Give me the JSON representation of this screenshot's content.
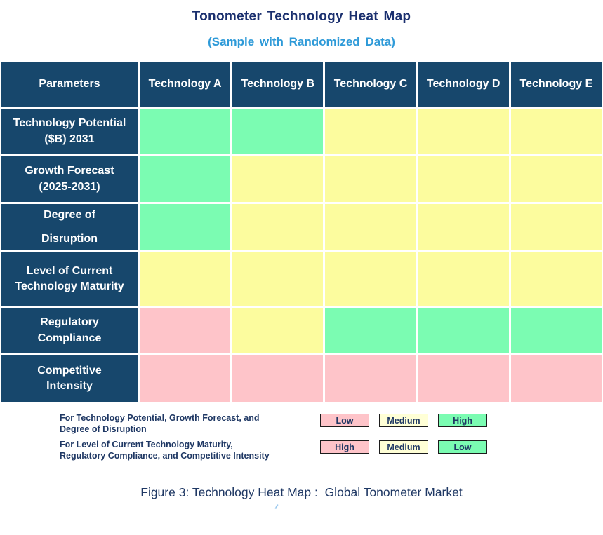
{
  "title": "Tonometer Technology Heat Map",
  "subtitle": "(Sample with Randomized Data)",
  "caption": "Figure 3: Technology Heat Map :  Global Tonometer Market",
  "table": {
    "header": [
      "Parameters",
      "Technology A",
      "Technology B",
      "Technology C",
      "Technology D",
      "Technology E"
    ],
    "rows": [
      {
        "label": "Technology Potential ($B) 2031",
        "label_lines": [
          "Technology Potential",
          "($B) 2031"
        ],
        "cells": [
          "green",
          "green",
          "yellow",
          "yellow",
          "yellow"
        ]
      },
      {
        "label": "Growth Forecast (2025-2031)",
        "label_lines": [
          "Growth Forecast",
          "(2025-2031)"
        ],
        "cells": [
          "green",
          "yellow",
          "yellow",
          "yellow",
          "yellow"
        ]
      },
      {
        "label": "Degree of Disruption",
        "label_lines": [
          "Degree of",
          "Disruption"
        ],
        "cells": [
          "green",
          "yellow",
          "yellow",
          "yellow",
          "yellow"
        ]
      },
      {
        "label": "Level of Current Technology Maturity",
        "label_lines": [
          "Level of Current",
          "Technology Maturity"
        ],
        "cells": [
          "yellow",
          "yellow",
          "yellow",
          "yellow",
          "yellow"
        ]
      },
      {
        "label": "Regulatory Compliance",
        "label_lines": [
          "Regulatory",
          "Compliance"
        ],
        "cells": [
          "pink",
          "yellow",
          "green",
          "green",
          "green"
        ]
      },
      {
        "label": "Competitive Intensity",
        "label_lines": [
          "Competitive",
          "Intensity"
        ],
        "cells": [
          "pink",
          "pink",
          "pink",
          "pink",
          "pink"
        ]
      }
    ]
  },
  "legend": {
    "rows": [
      {
        "text_lines": [
          "For Technology Potential, Growth Forecast, and",
          "Degree of Disruption"
        ],
        "boxes": [
          {
            "label": "Low",
            "color": "pink"
          },
          {
            "label": "Medium",
            "color": "cream"
          },
          {
            "label": "High",
            "color": "green"
          }
        ]
      },
      {
        "text_lines": [
          "For Level of Current Technology Maturity,",
          "Regulatory Compliance, and Competitive Intensity"
        ],
        "boxes": [
          {
            "label": "High",
            "color": "pink"
          },
          {
            "label": "Medium",
            "color": "cream"
          },
          {
            "label": "Low",
            "color": "green"
          }
        ]
      }
    ]
  },
  "colors": {
    "header_bg": "#17476C",
    "title": "#1A2F6E",
    "subtitle": "#2E9AD8",
    "navy_text": "#1F3864",
    "green": "#7BFCB2",
    "yellow": "#FCFC9E",
    "pink": "#FEC4C9",
    "cream": "#FFFFD6"
  },
  "chart_data": {
    "type": "heatmap",
    "title": "Tonometer Technology Heat Map",
    "subtitle": "(Sample with Randomized Data)",
    "caption": "Figure 3: Technology Heat Map : Global Tonometer Market",
    "columns": [
      "Technology A",
      "Technology B",
      "Technology C",
      "Technology D",
      "Technology E"
    ],
    "rows": [
      "Technology Potential ($B) 2031",
      "Growth Forecast (2025-2031)",
      "Degree of Disruption",
      "Level of Current Technology Maturity",
      "Regulatory Compliance",
      "Competitive Intensity"
    ],
    "cell_colors": [
      [
        "green",
        "green",
        "yellow",
        "yellow",
        "yellow"
      ],
      [
        "green",
        "yellow",
        "yellow",
        "yellow",
        "yellow"
      ],
      [
        "green",
        "yellow",
        "yellow",
        "yellow",
        "yellow"
      ],
      [
        "yellow",
        "yellow",
        "yellow",
        "yellow",
        "yellow"
      ],
      [
        "pink",
        "yellow",
        "green",
        "green",
        "green"
      ],
      [
        "pink",
        "pink",
        "pink",
        "pink",
        "pink"
      ]
    ],
    "levels": [
      [
        "High",
        "High",
        "Medium",
        "Medium",
        "Medium"
      ],
      [
        "High",
        "Medium",
        "Medium",
        "Medium",
        "Medium"
      ],
      [
        "High",
        "Medium",
        "Medium",
        "Medium",
        "Medium"
      ],
      [
        "Medium",
        "Medium",
        "Medium",
        "Medium",
        "Medium"
      ],
      [
        "High",
        "Medium",
        "Low",
        "Low",
        "Low"
      ],
      [
        "High",
        "High",
        "High",
        "High",
        "High"
      ]
    ],
    "legend_scales": [
      {
        "applies_to": "Technology Potential, Growth Forecast, and Degree of Disruption",
        "pink": "Low",
        "yellow": "Medium",
        "green": "High"
      },
      {
        "applies_to": "Level of Current Technology Maturity, Regulatory Compliance, and Competitive Intensity",
        "pink": "High",
        "yellow": "Medium",
        "green": "Low"
      }
    ],
    "legend_position": "bottom-left"
  }
}
